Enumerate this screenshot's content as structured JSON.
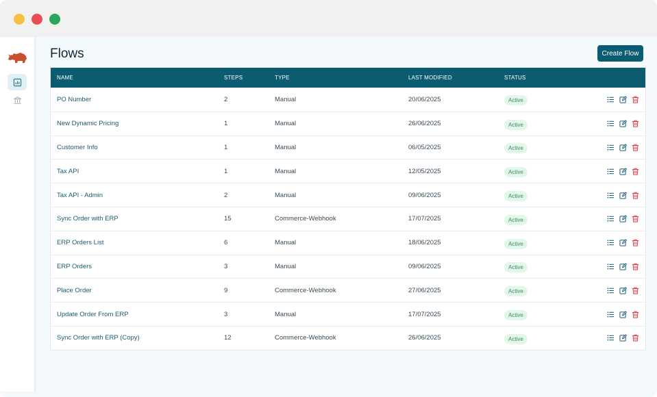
{
  "window": {
    "colors": {
      "close": "#ea4d53",
      "minimize": "#f5c044",
      "maximize": "#2aa85a"
    }
  },
  "sidebar": {
    "items": [
      {
        "icon": "chart-icon",
        "active": true
      },
      {
        "icon": "bank-icon",
        "active": false
      }
    ]
  },
  "page": {
    "title": "Flows",
    "create_label": "Create Flow"
  },
  "table": {
    "columns": [
      "NAME",
      "STEPS",
      "TYPE",
      "LAST MODIFIED",
      "STATUS"
    ],
    "rows": [
      {
        "name": "PO Number",
        "steps": "2",
        "type": "Manual",
        "modified": "20/06/2025",
        "status": "Active"
      },
      {
        "name": "New Dynamic Pricing",
        "steps": "1",
        "type": "Manual",
        "modified": "26/06/2025",
        "status": "Active"
      },
      {
        "name": "Customer Info",
        "steps": "1",
        "type": "Manual",
        "modified": "06/05/2025",
        "status": "Active"
      },
      {
        "name": "Tax API",
        "steps": "1",
        "type": "Manual",
        "modified": "12/05/2025",
        "status": "Active"
      },
      {
        "name": "Tax API - Admin",
        "steps": "2",
        "type": "Manual",
        "modified": "09/06/2025",
        "status": "Active"
      },
      {
        "name": "Sync Order with ERP",
        "steps": "15",
        "type": "Commerce-Webhook",
        "modified": "17/07/2025",
        "status": "Active"
      },
      {
        "name": "ERP Orders List",
        "steps": "6",
        "type": "Manual",
        "modified": "18/06/2025",
        "status": "Active"
      },
      {
        "name": "ERP Orders",
        "steps": "3",
        "type": "Manual",
        "modified": "09/06/2025",
        "status": "Active"
      },
      {
        "name": "Place Order",
        "steps": "9",
        "type": "Commerce-Webhook",
        "modified": "27/06/2025",
        "status": "Active"
      },
      {
        "name": "Update Order From ERP",
        "steps": "3",
        "type": "Manual",
        "modified": "17/07/2025",
        "status": "Active"
      },
      {
        "name": "Sync Order with ERP (Copy)",
        "steps": "12",
        "type": "Commerce-Webhook",
        "modified": "26/06/2025",
        "status": "Active"
      }
    ],
    "row_actions": [
      "list-icon",
      "edit-icon",
      "delete-icon"
    ]
  },
  "colors": {
    "accent": "#0b5c70",
    "active_badge_bg": "#e3f6ea",
    "active_badge_text": "#3a8f5b",
    "delete": "#d9363e"
  }
}
